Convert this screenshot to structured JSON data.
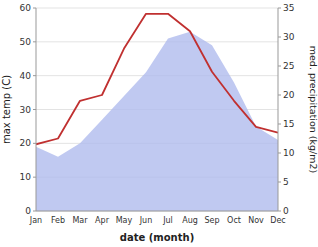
{
  "chart_data": {
    "type": "area",
    "categories": [
      "Jan",
      "Feb",
      "Mar",
      "Apr",
      "May",
      "Jun",
      "Jul",
      "Aug",
      "Sep",
      "Oct",
      "Nov",
      "Dec"
    ],
    "series": [
      {
        "type": "area",
        "color": "#b0bbee",
        "values": [
          19,
          16,
          20,
          27,
          34,
          41,
          51,
          53,
          49,
          38,
          25,
          21
        ]
      },
      {
        "type": "line",
        "color": "#c03030",
        "axis": "y2",
        "values": [
          11.5,
          12.5,
          19,
          20,
          28,
          34,
          34,
          31,
          24,
          19,
          14.5,
          13.5
        ]
      }
    ],
    "xlabel": "date (month)",
    "ylabel": "max temp (C)",
    "y2label": "med. precipitation (kg/m2)",
    "ylim": [
      0,
      60
    ],
    "yticks": [
      0,
      10,
      20,
      30,
      40,
      50,
      60
    ],
    "y2lim": [
      0,
      35
    ],
    "y2ticks": [
      0,
      5,
      10,
      15,
      20,
      25,
      30,
      35
    ],
    "grid": true
  }
}
